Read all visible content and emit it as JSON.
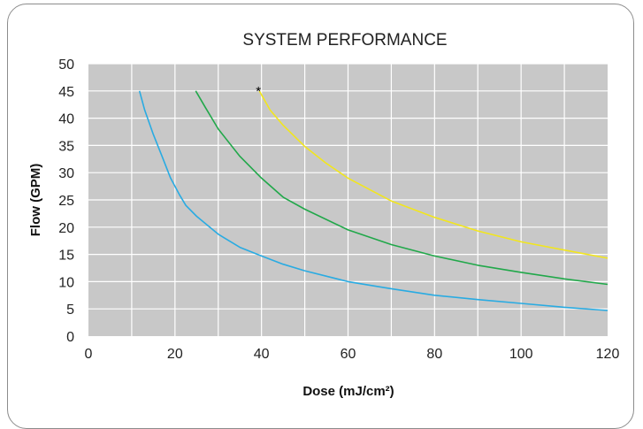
{
  "chart_data": {
    "type": "line",
    "title": "SYSTEM PERFORMANCE",
    "xlabel": "Dose (mJ/cm²)",
    "ylabel": "Flow (GPM)",
    "xlim": [
      0,
      120
    ],
    "ylim": [
      0,
      50
    ],
    "x_ticks": [
      "0",
      "20",
      "40",
      "60",
      "80",
      "100",
      "120"
    ],
    "y_ticks": [
      "0",
      "5",
      "10",
      "15",
      "20",
      "25",
      "30",
      "35",
      "40",
      "45",
      "50"
    ],
    "grid": true,
    "background_color": "#c8c8c8",
    "annotation": {
      "text": "*",
      "x": 39.5,
      "y": 45
    },
    "series": [
      {
        "color": "#29abe2",
        "x": [
          11.8,
          13,
          15,
          17,
          19,
          21,
          22.5,
          25,
          30,
          35,
          40,
          45,
          50,
          60,
          70,
          80,
          90,
          100,
          110,
          120
        ],
        "y": [
          45,
          41.5,
          37,
          33,
          29,
          26,
          24,
          22,
          18.7,
          16.3,
          14.7,
          13.2,
          12,
          10,
          8.7,
          7.5,
          6.7,
          6,
          5.3,
          4.7
        ]
      },
      {
        "color": "#21a84a",
        "x": [
          24.8,
          27,
          30,
          35,
          40,
          45,
          50,
          60,
          70,
          80,
          90,
          100,
          110,
          120
        ],
        "y": [
          45,
          42,
          38,
          33,
          29,
          25.5,
          23.3,
          19.5,
          16.8,
          14.7,
          13,
          11.7,
          10.5,
          9.5
        ]
      },
      {
        "color": "#f2e61d",
        "x": [
          39.5,
          42,
          45,
          50,
          55,
          60,
          70,
          80,
          90,
          100,
          110,
          120
        ],
        "y": [
          45,
          41.5,
          38.7,
          34.8,
          31.7,
          29,
          24.8,
          21.8,
          19.3,
          17.3,
          15.8,
          14.3
        ]
      }
    ]
  }
}
